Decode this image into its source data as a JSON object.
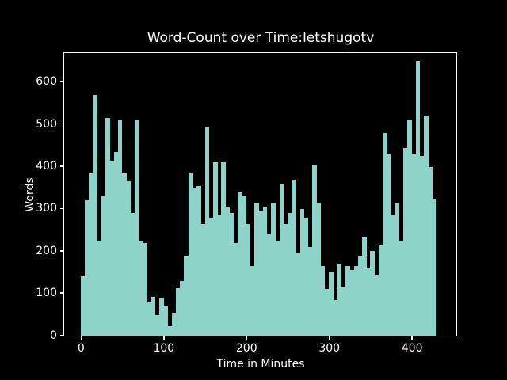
{
  "title": "Word-Count over Time:letshugotv",
  "xlabel": "Time in Minutes",
  "ylabel": "Words",
  "colors": {
    "background": "#000000",
    "bar": "#8dd3c7",
    "text": "#ffffff",
    "spine": "#ffffff"
  },
  "chart_data": {
    "type": "bar",
    "title": "Word-Count over Time:letshugotv",
    "xlabel": "Time in Minutes",
    "ylabel": "Words",
    "bar_width_minutes": 5,
    "x": [
      0,
      5,
      10,
      15,
      20,
      25,
      30,
      35,
      40,
      45,
      50,
      55,
      60,
      65,
      70,
      75,
      80,
      85,
      90,
      95,
      100,
      105,
      110,
      115,
      120,
      125,
      130,
      135,
      140,
      145,
      150,
      155,
      160,
      165,
      170,
      175,
      180,
      185,
      190,
      195,
      200,
      205,
      210,
      215,
      220,
      225,
      230,
      235,
      240,
      245,
      250,
      255,
      260,
      265,
      270,
      275,
      280,
      285,
      290,
      295,
      300,
      305,
      310,
      315,
      320,
      325,
      330,
      335,
      340,
      345,
      350,
      355,
      360,
      365,
      370,
      375,
      380,
      385,
      390,
      395,
      400,
      405,
      410,
      415,
      420,
      425
    ],
    "values": [
      140,
      320,
      385,
      570,
      225,
      330,
      515,
      415,
      435,
      510,
      385,
      365,
      290,
      510,
      225,
      220,
      78,
      92,
      48,
      90,
      70,
      22,
      55,
      112,
      130,
      190,
      385,
      350,
      355,
      265,
      495,
      280,
      410,
      285,
      410,
      305,
      290,
      220,
      340,
      330,
      265,
      165,
      315,
      295,
      305,
      240,
      315,
      225,
      360,
      265,
      290,
      370,
      195,
      300,
      280,
      210,
      405,
      315,
      165,
      110,
      150,
      85,
      170,
      115,
      165,
      155,
      165,
      190,
      235,
      160,
      200,
      145,
      215,
      480,
      430,
      285,
      315,
      225,
      445,
      510,
      430,
      650,
      425,
      520,
      400,
      325
    ],
    "xlim": [
      -20,
      453
    ],
    "ylim": [
      0,
      667
    ],
    "xticks": [
      0,
      100,
      200,
      300,
      400
    ],
    "yticks": [
      0,
      100,
      200,
      300,
      400,
      500,
      600
    ],
    "grid": false,
    "legend": null
  }
}
